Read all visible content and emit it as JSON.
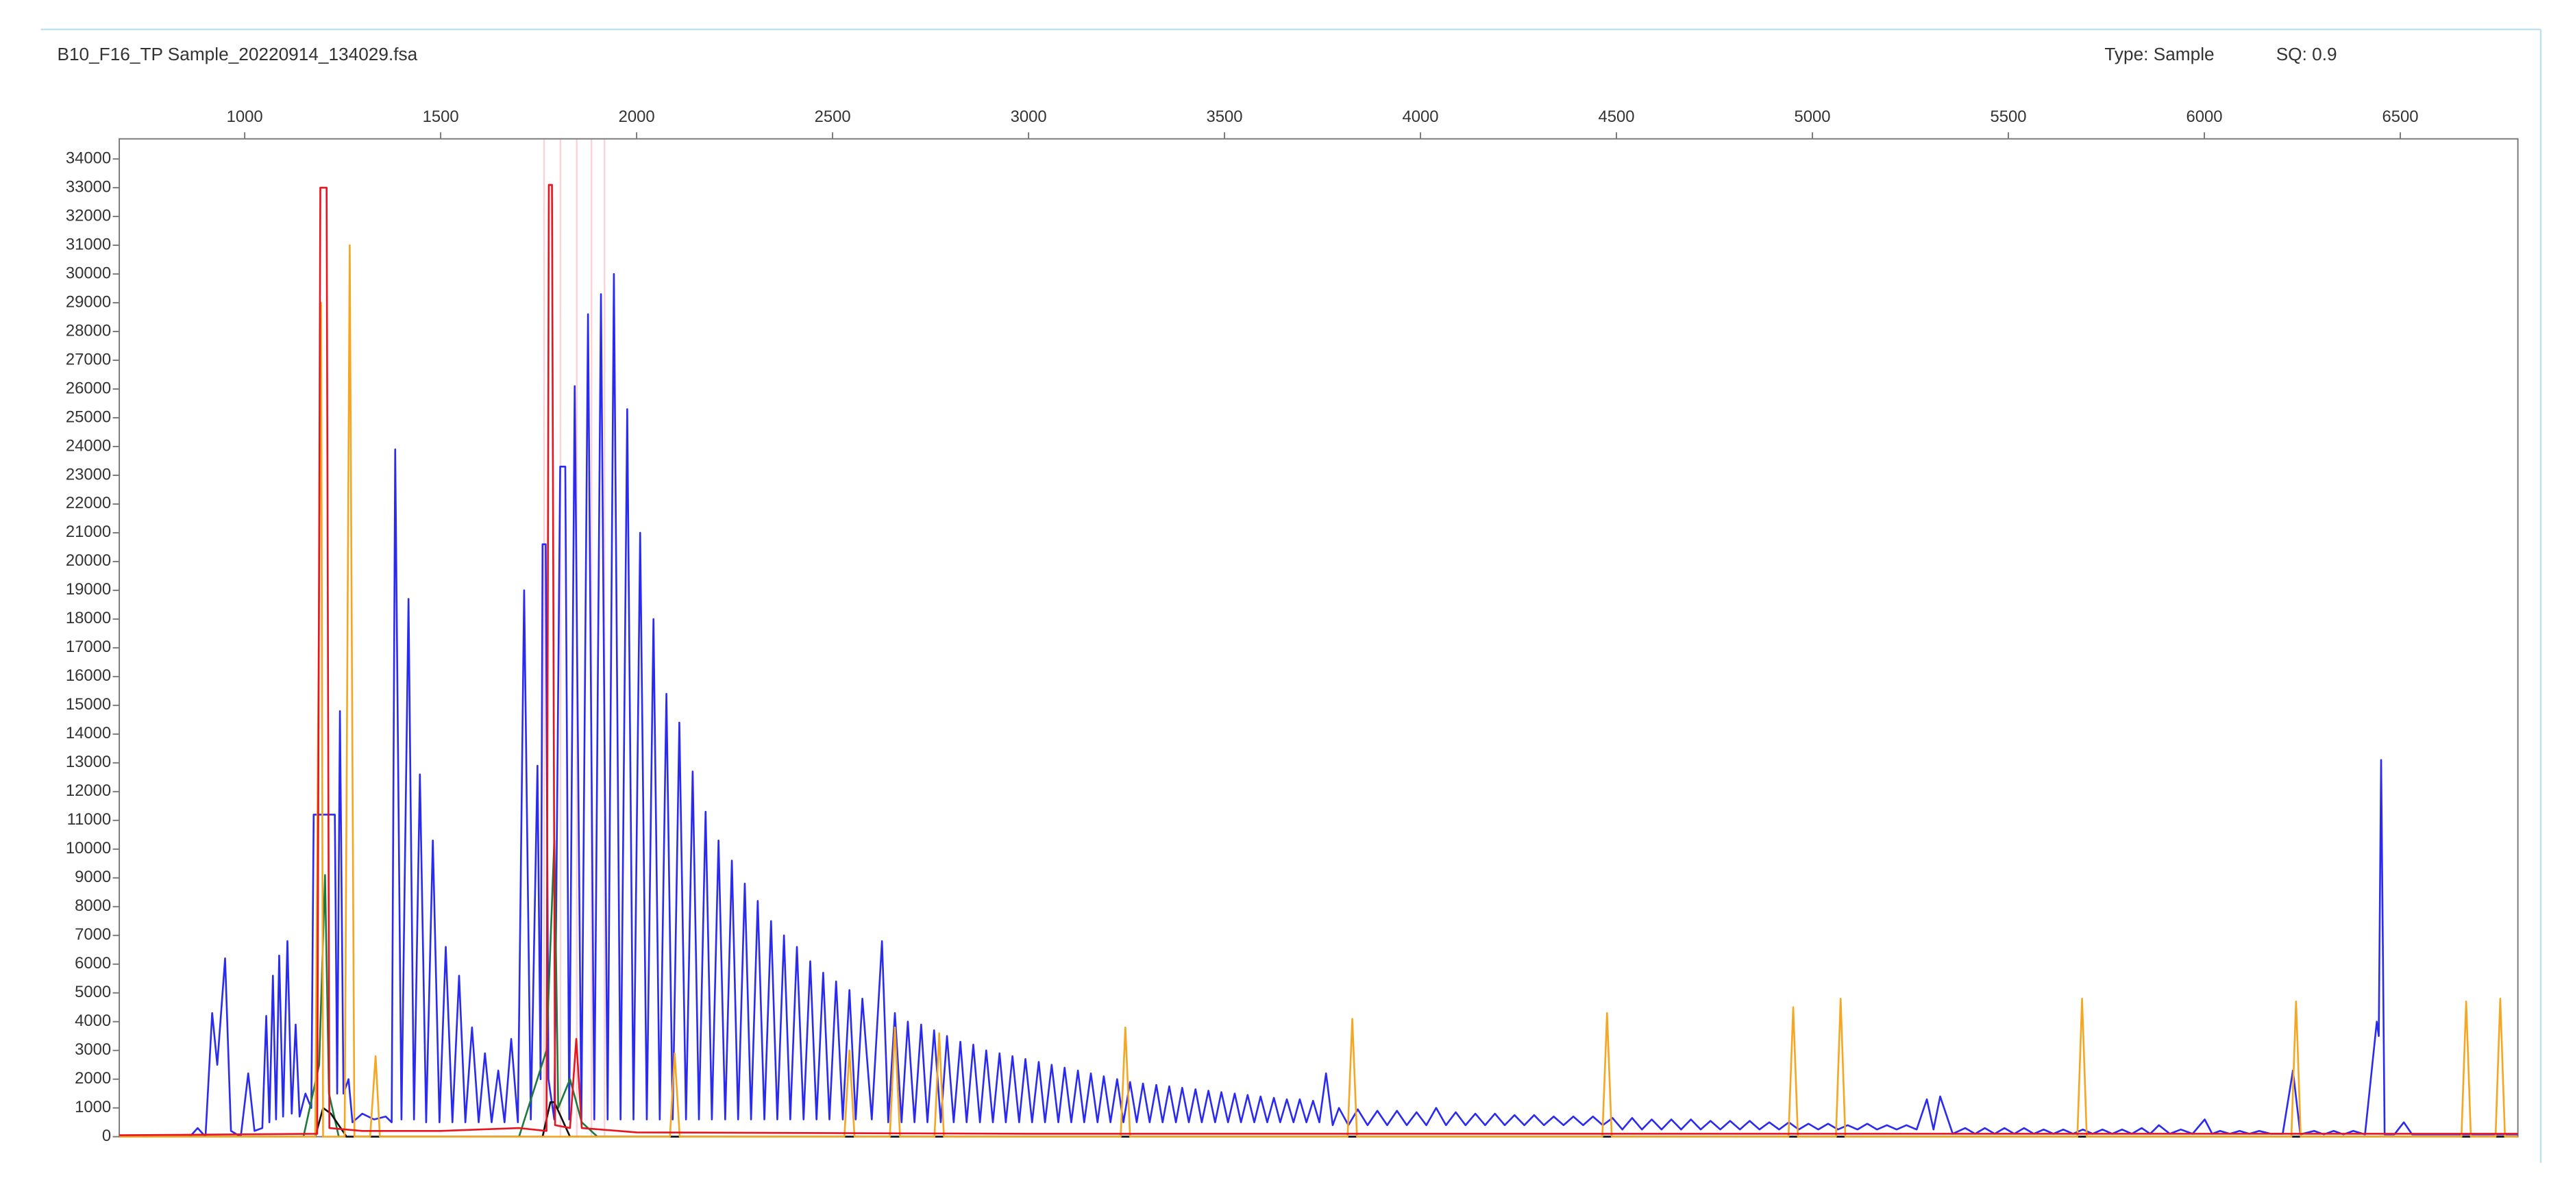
{
  "chart_data": {
    "type": "line",
    "title": "B10_F16_TP Sample_20220914_134029.fsa",
    "annotations": [
      "Type: Sample",
      "SQ: 0.9"
    ],
    "xlim": [
      680,
      6800
    ],
    "xticks": [
      1000,
      1500,
      2000,
      2500,
      3000,
      3500,
      4000,
      4500,
      5000,
      5500,
      6000,
      6500
    ],
    "ylim": [
      0,
      34700
    ],
    "yticks": [
      0,
      1000,
      2000,
      3000,
      4000,
      5000,
      6000,
      7000,
      8000,
      9000,
      10000,
      11000,
      12000,
      13000,
      14000,
      15000,
      16000,
      17000,
      18000,
      19000,
      20000,
      21000,
      22000,
      23000,
      24000,
      25000,
      26000,
      27000,
      28000,
      29000,
      30000,
      31000,
      32000,
      33000,
      34000
    ],
    "grid": false,
    "series": [
      {
        "color": "#2b2bef",
        "x": [
          680,
          860,
          880,
          900,
          917,
          930,
          950,
          965,
          990,
          1009,
          1025,
          1045,
          1055,
          1063,
          1072,
          1080,
          1088,
          1098,
          1109,
          1120,
          1130,
          1140,
          1155,
          1170,
          1176,
          1230,
          1236,
          1243,
          1252,
          1265,
          1275,
          1300,
          1330,
          1360,
          1375,
          1384,
          1400,
          1418,
          1432,
          1447,
          1463,
          1480,
          1497,
          1513,
          1530,
          1547,
          1563,
          1580,
          1597,
          1613,
          1630,
          1647,
          1663,
          1680,
          1697,
          1713,
          1730,
          1747,
          1755,
          1760,
          1768,
          1775,
          1790,
          1805,
          1818,
          1828,
          1842,
          1859,
          1876,
          1892,
          1909,
          1926,
          1942,
          1959,
          1976,
          1992,
          2009,
          2026,
          2043,
          2059,
          2076,
          2092,
          2109,
          2126,
          2143,
          2159,
          2176,
          2192,
          2209,
          2226,
          2243,
          2259,
          2276,
          2292,
          2309,
          2326,
          2343,
          2359,
          2376,
          2392,
          2409,
          2426,
          2443,
          2459,
          2476,
          2492,
          2509,
          2526,
          2543,
          2559,
          2576,
          2600,
          2626,
          2642,
          2659,
          2676,
          2692,
          2709,
          2726,
          2742,
          2759,
          2776,
          2792,
          2809,
          2826,
          2842,
          2859,
          2876,
          2892,
          2909,
          2926,
          2942,
          2959,
          2976,
          2992,
          3009,
          3026,
          3042,
          3059,
          3076,
          3092,
          3109,
          3126,
          3142,
          3159,
          3176,
          3192,
          3209,
          3226,
          3242,
          3259,
          3276,
          3292,
          3309,
          3326,
          3342,
          3359,
          3376,
          3392,
          3409,
          3426,
          3442,
          3459,
          3476,
          3492,
          3509,
          3526,
          3542,
          3559,
          3576,
          3592,
          3609,
          3626,
          3642,
          3659,
          3676,
          3692,
          3709,
          3726,
          3742,
          3759,
          3776,
          3792,
          3816,
          3840,
          3865,
          3890,
          3915,
          3940,
          3965,
          3990,
          4015,
          4040,
          4065,
          4090,
          4115,
          4140,
          4165,
          4190,
          4215,
          4240,
          4265,
          4290,
          4315,
          4340,
          4365,
          4390,
          4415,
          4440,
          4465,
          4490,
          4515,
          4540,
          4565,
          4590,
          4615,
          4640,
          4665,
          4690,
          4715,
          4740,
          4765,
          4790,
          4815,
          4840,
          4865,
          4890,
          4915,
          4940,
          4965,
          4990,
          5015,
          5040,
          5065,
          5090,
          5115,
          5140,
          5165,
          5190,
          5215,
          5240,
          5266,
          5292,
          5309,
          5326,
          5358,
          5390,
          5415,
          5440,
          5465,
          5490,
          5515,
          5540,
          5565,
          5590,
          5615,
          5640,
          5665,
          5690,
          5715,
          5740,
          5765,
          5790,
          5815,
          5840,
          5862,
          5884,
          5912,
          5940,
          5970,
          6001,
          6020,
          6040,
          6065,
          6090,
          6115,
          6140,
          6170,
          6200,
          6226,
          6245,
          6280,
          6305,
          6330,
          6355,
          6380,
          6410,
          6440,
          6445,
          6451,
          6460,
          6485,
          6509,
          6530,
          6800
        ],
        "values": [
          0,
          0,
          300,
          0,
          4300,
          2500,
          6200,
          200,
          0,
          2200,
          200,
          300,
          4200,
          500,
          5600,
          600,
          6300,
          700,
          6800,
          800,
          3900,
          700,
          1500,
          1000,
          11200,
          11200,
          1500,
          14800,
          1500,
          2000,
          500,
          800,
          600,
          700,
          500,
          23900,
          600,
          18700,
          600,
          12600,
          500,
          10300,
          500,
          6600,
          500,
          5600,
          500,
          3800,
          500,
          2900,
          500,
          2300,
          500,
          3400,
          500,
          19000,
          600,
          12900,
          2000,
          20600,
          20600,
          2000,
          600,
          23300,
          23300,
          600,
          26100,
          600,
          28600,
          600,
          29300,
          600,
          30000,
          600,
          25300,
          600,
          21000,
          600,
          18000,
          600,
          15400,
          600,
          14400,
          600,
          12700,
          600,
          11300,
          600,
          10300,
          600,
          9600,
          600,
          8800,
          600,
          8200,
          600,
          7500,
          600,
          7000,
          600,
          6600,
          600,
          6100,
          600,
          5700,
          600,
          5400,
          600,
          5100,
          600,
          4800,
          600,
          6800,
          500,
          4300,
          500,
          4000,
          500,
          3900,
          500,
          3700,
          500,
          3500,
          500,
          3300,
          500,
          3200,
          500,
          3000,
          500,
          2900,
          500,
          2800,
          500,
          2700,
          500,
          2600,
          500,
          2500,
          500,
          2400,
          500,
          2300,
          500,
          2200,
          500,
          2100,
          500,
          2000,
          500,
          1900,
          500,
          1850,
          500,
          1800,
          500,
          1750,
          500,
          1700,
          500,
          1650,
          500,
          1600,
          500,
          1550,
          500,
          1500,
          500,
          1450,
          500,
          1400,
          500,
          1350,
          500,
          1300,
          500,
          1300,
          500,
          1250,
          500,
          2200,
          400,
          1000,
          400,
          950,
          400,
          900,
          400,
          900,
          400,
          850,
          400,
          1000,
          400,
          850,
          400,
          800,
          400,
          800,
          400,
          750,
          400,
          750,
          400,
          700,
          400,
          700,
          400,
          700,
          400,
          650,
          250,
          650,
          250,
          600,
          250,
          600,
          250,
          600,
          250,
          550,
          250,
          550,
          250,
          550,
          250,
          500,
          250,
          500,
          250,
          450,
          250,
          450,
          250,
          400,
          250,
          450,
          250,
          400,
          250,
          400,
          250,
          1300,
          250,
          1400,
          100,
          300,
          100,
          300,
          100,
          300,
          100,
          300,
          100,
          250,
          100,
          250,
          100,
          250,
          100,
          250,
          100,
          250,
          100,
          300,
          100,
          400,
          100,
          250,
          100,
          600,
          100,
          200,
          100,
          200,
          100,
          200,
          100,
          100,
          2300,
          80,
          200,
          80,
          200,
          80,
          200,
          80,
          4000,
          3500,
          13100,
          80,
          80,
          500,
          80,
          80
        ]
      },
      {
        "color": "#1e7a3c",
        "x": [
          680,
          1150,
          1190,
          1205,
          1215,
          1240,
          1700,
          1770,
          1790,
          1800,
          1830,
          1860,
          1900,
          6800
        ],
        "values": [
          0,
          0,
          2500,
          9100,
          1500,
          0,
          0,
          3000,
          10300,
          1000,
          2000,
          500,
          0,
          0
        ]
      },
      {
        "color": "#111111",
        "x": [
          680,
          1180,
          1200,
          1220,
          1260,
          1760,
          1780,
          1790,
          1830,
          1900,
          6800
        ],
        "values": [
          0,
          0,
          1000,
          800,
          0,
          0,
          1200,
          1200,
          0,
          0,
          0
        ]
      },
      {
        "color": "#f5a623",
        "x": [
          680,
          1180,
          1195,
          1200,
          1255,
          1268,
          1280,
          1320,
          1334,
          1345,
          2085,
          2097,
          2110,
          2530,
          2543,
          2556,
          2646,
          2659,
          2672,
          2760,
          2772,
          2784,
          3235,
          3247,
          3259,
          3814,
          3826,
          3838,
          4464,
          4476,
          4488,
          4939,
          4951,
          4963,
          5060,
          5072,
          5084,
          5676,
          5688,
          5700,
          6222,
          6234,
          6246,
          6656,
          6668,
          6680,
          6743,
          6755,
          6767,
          6800
        ],
        "values": [
          0,
          0,
          29000,
          0,
          0,
          31000,
          0,
          0,
          2800,
          0,
          0,
          2900,
          0,
          0,
          3000,
          0,
          0,
          3800,
          0,
          0,
          3600,
          0,
          0,
          3800,
          0,
          0,
          4100,
          0,
          0,
          4300,
          0,
          0,
          4500,
          0,
          0,
          4800,
          0,
          0,
          4800,
          0,
          0,
          4700,
          0,
          0,
          4700,
          0,
          0,
          4800,
          0,
          0
        ]
      },
      {
        "color": "#e8141e",
        "x": [
          680,
          1185,
          1193,
          1209,
          1216,
          1300,
          1500,
          1700,
          1770,
          1776,
          1784,
          1792,
          1830,
          1846,
          1860,
          2000,
          3000,
          6800
        ],
        "values": [
          50,
          100,
          33000,
          33000,
          300,
          200,
          200,
          300,
          200,
          33100,
          33100,
          400,
          300,
          3400,
          300,
          150,
          100,
          100
        ]
      }
    ]
  }
}
